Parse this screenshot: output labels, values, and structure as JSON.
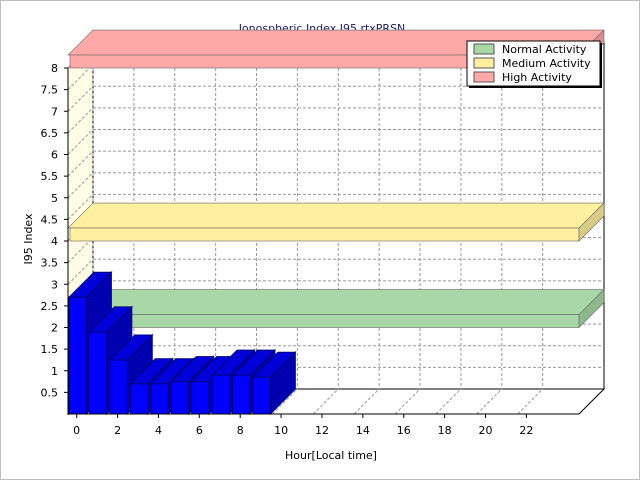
{
  "chart_data": {
    "type": "bar",
    "title": "Ionospheric Index I95 rtxPRSN",
    "xlabel": "Hour[Local time]",
    "ylabel": "I95 Index",
    "x": [
      0,
      1,
      2,
      3,
      4,
      5,
      6,
      7,
      8,
      9
    ],
    "values": [
      2.7,
      1.9,
      1.25,
      0.7,
      0.7,
      0.75,
      0.75,
      0.9,
      0.9,
      0.85
    ],
    "xlim": [
      0,
      25
    ],
    "ylim": [
      0,
      8
    ],
    "x_ticks": [
      "0",
      "2",
      "4",
      "6",
      "8",
      "10",
      "12",
      "14",
      "16",
      "18",
      "20",
      "22"
    ],
    "y_ticks": [
      "0.5",
      "1",
      "1.5",
      "2",
      "2.5",
      "3",
      "3.5",
      "4",
      "4.5",
      "5",
      "5.5",
      "6",
      "6.5",
      "7",
      "7.5",
      "8"
    ],
    "grid": true,
    "legend_position": "top-right",
    "bands": [
      {
        "name": "Normal Activity",
        "value": 2,
        "color": "#a8d8a8"
      },
      {
        "name": "Medium Activity",
        "value": 4,
        "color": "#fff0a0"
      },
      {
        "name": "High Activity",
        "value": 8,
        "color": "#ffa8a8"
      }
    ],
    "bar_color": "#0000ff"
  }
}
